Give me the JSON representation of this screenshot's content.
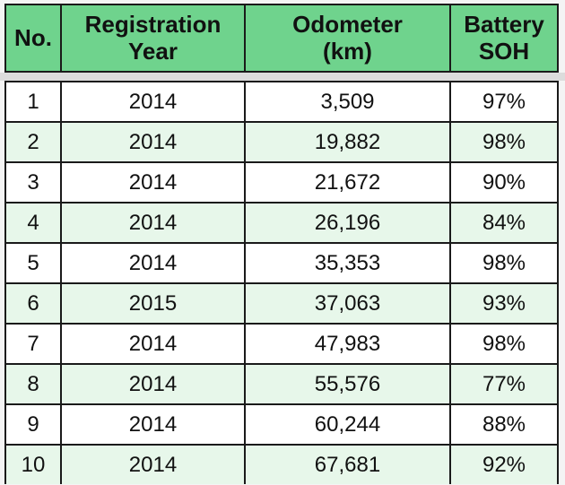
{
  "table": {
    "headers": [
      "No.",
      "Registration\nYear",
      "Odometer\n(km)",
      "Battery\nSOH"
    ],
    "rows": [
      [
        "1",
        "2014",
        "3,509",
        "97%"
      ],
      [
        "2",
        "2014",
        "19,882",
        "98%"
      ],
      [
        "3",
        "2014",
        "21,672",
        "90%"
      ],
      [
        "4",
        "2014",
        "26,196",
        "84%"
      ],
      [
        "5",
        "2014",
        "35,353",
        "98%"
      ],
      [
        "6",
        "2015",
        "37,063",
        "93%"
      ],
      [
        "7",
        "2014",
        "47,983",
        "98%"
      ],
      [
        "8",
        "2014",
        "55,576",
        "77%"
      ],
      [
        "9",
        "2014",
        "60,244",
        "88%"
      ],
      [
        "10",
        "2014",
        "67,681",
        "92%"
      ]
    ]
  },
  "colors": {
    "header_bg": "#6fd38d",
    "alt_row_bg": "#e7f7ea",
    "border": "#1a1a1a"
  }
}
